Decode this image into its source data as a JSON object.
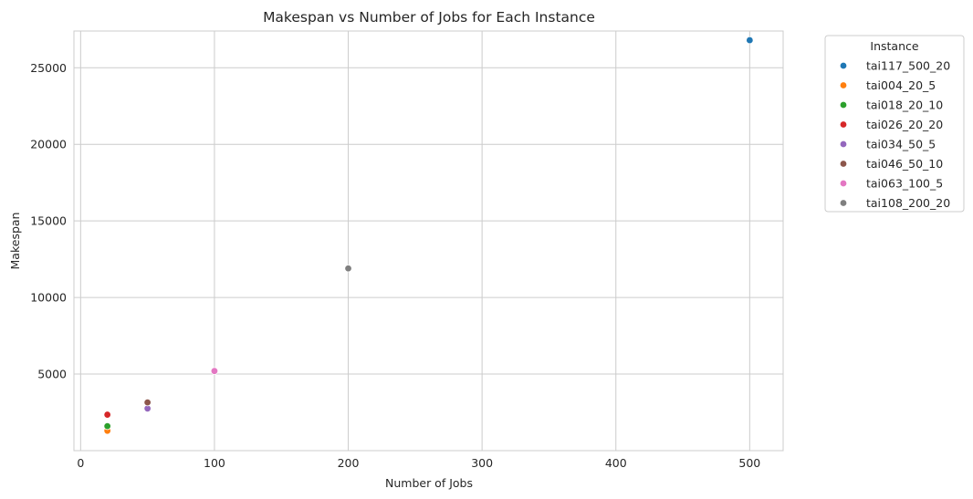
{
  "chart_data": {
    "type": "scatter",
    "title": "Makespan vs Number of Jobs for Each Instance",
    "xlabel": "Number of Jobs",
    "ylabel": "Makespan",
    "xlim": [
      -5,
      525
    ],
    "ylim": [
      0,
      27400
    ],
    "xticks": [
      0,
      100,
      200,
      300,
      400,
      500
    ],
    "yticks": [
      5000,
      10000,
      15000,
      20000,
      25000
    ],
    "grid": true,
    "legend": {
      "title": "Instance",
      "placement": "outside-right"
    },
    "series": [
      {
        "name": "tai117_500_20",
        "color": "#1f77b4",
        "points": [
          {
            "x": 500,
            "y": 26800
          }
        ]
      },
      {
        "name": "tai004_20_5",
        "color": "#ff7f0e",
        "points": [
          {
            "x": 20,
            "y": 1300
          }
        ]
      },
      {
        "name": "tai018_20_10",
        "color": "#2ca02c",
        "points": [
          {
            "x": 20,
            "y": 1600
          }
        ]
      },
      {
        "name": "tai026_20_20",
        "color": "#d62728",
        "points": [
          {
            "x": 20,
            "y": 2350
          }
        ]
      },
      {
        "name": "tai034_50_5",
        "color": "#9467bd",
        "points": [
          {
            "x": 50,
            "y": 2750
          }
        ]
      },
      {
        "name": "tai046_50_10",
        "color": "#8c564b",
        "points": [
          {
            "x": 50,
            "y": 3150
          }
        ]
      },
      {
        "name": "tai063_100_5",
        "color": "#e377c2",
        "points": [
          {
            "x": 100,
            "y": 5200
          }
        ]
      },
      {
        "name": "tai108_200_20",
        "color": "#7f7f7f",
        "points": [
          {
            "x": 200,
            "y": 11900
          }
        ]
      }
    ]
  }
}
